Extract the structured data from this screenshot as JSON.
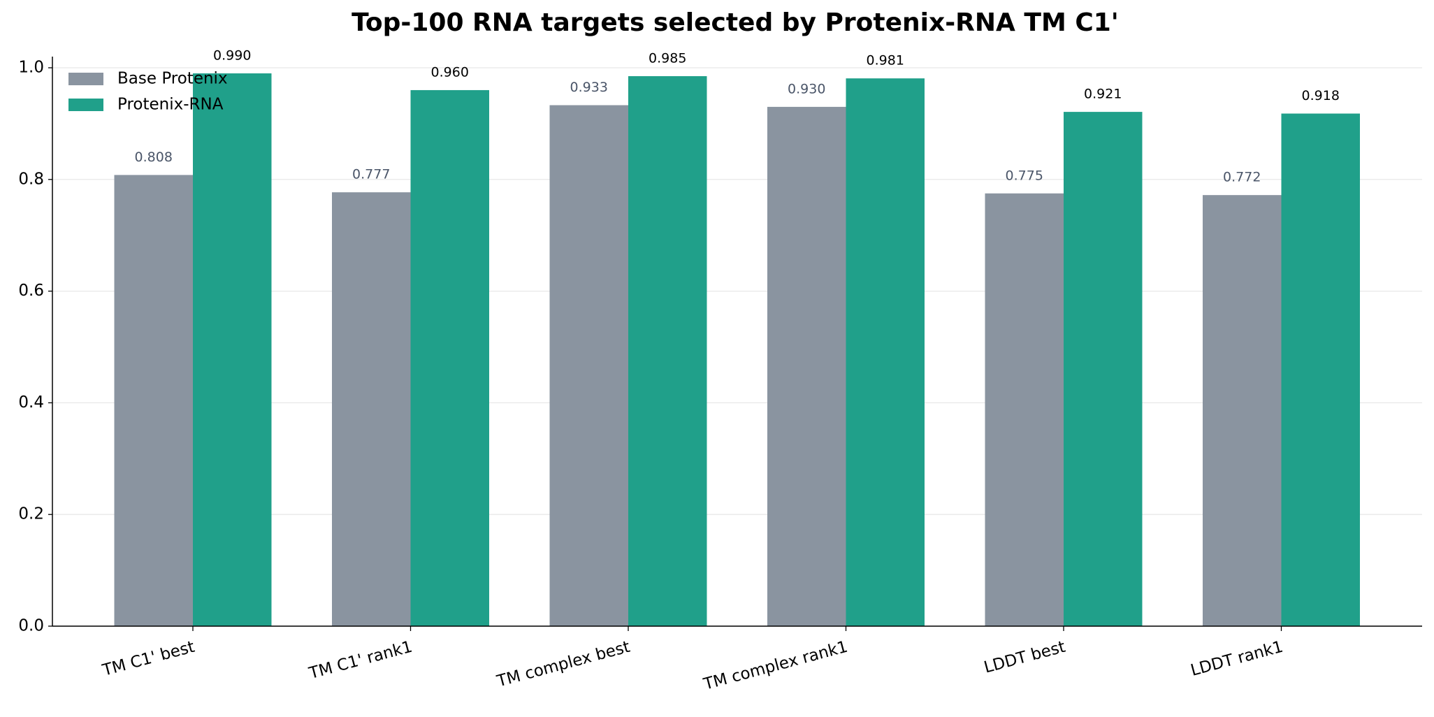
{
  "chart_data": {
    "type": "bar",
    "title": "Top-100 RNA targets selected by Protenix-RNA TM C1'",
    "categories": [
      "TM C1' best",
      "TM C1' rank1",
      "TM complex best",
      "TM complex rank1",
      "LDDT best",
      "LDDT rank1"
    ],
    "series": [
      {
        "name": "Base Protenix",
        "color": "#8a94a0",
        "values": [
          0.808,
          0.777,
          0.933,
          0.93,
          0.775,
          0.772
        ],
        "value_labels": [
          "0.808",
          "0.777",
          "0.933",
          "0.930",
          "0.775",
          "0.772"
        ]
      },
      {
        "name": "Protenix-RNA",
        "color": "#20a08a",
        "values": [
          0.99,
          0.96,
          0.985,
          0.981,
          0.921,
          0.918
        ],
        "value_labels": [
          "0.990",
          "0.960",
          "0.985",
          "0.981",
          "0.921",
          "0.918"
        ]
      }
    ],
    "ylim": [
      0,
      1.02
    ],
    "yticks": [
      {
        "value": 0,
        "label": "0.0"
      },
      0.2,
      0.4,
      0.6,
      0.8,
      {
        "value": 1,
        "label": "1.0"
      }
    ],
    "grid": true,
    "legend": "upper left"
  }
}
